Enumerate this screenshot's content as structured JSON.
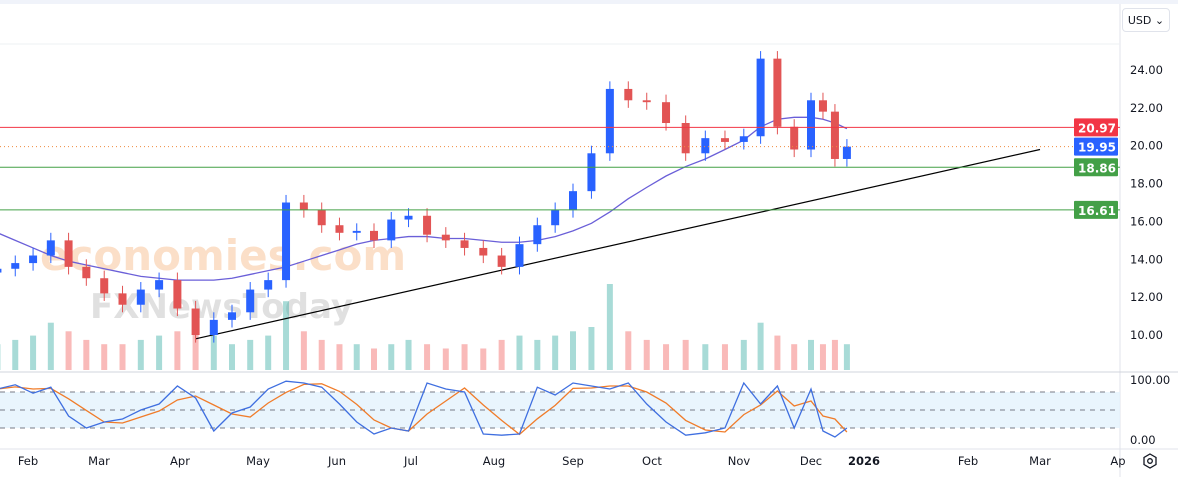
{
  "currency_selector": {
    "label": "USD",
    "icon": "chevron-down-icon"
  },
  "watermarks": [
    "economies.com",
    "FXNewsToday"
  ],
  "colors": {
    "up": "#2962ff",
    "down": "#e25454",
    "ma": "#6a5fd8",
    "stoch_k": "#3f6fe0",
    "stoch_d": "#f07c2a",
    "resistance": "#f23645",
    "support": "#43a047",
    "last_price": "#2962ff",
    "trendline": "#000000"
  },
  "chart_data": [
    {
      "type": "candlestick",
      "title": "",
      "ylim": [
        8.5,
        26
      ],
      "y_ticks": [
        "24.00",
        "22.00",
        "20.00",
        "18.00",
        "16.00",
        "14.00",
        "12.00",
        "10.00"
      ],
      "x_ticks": [
        "Feb",
        "Mar",
        "Apr",
        "May",
        "Jun",
        "Jul",
        "Aug",
        "Sep",
        "Oct",
        "Nov",
        "Dec",
        "2026",
        "Feb",
        "Mar",
        "Ap"
      ],
      "dates": [
        "2025-01-20",
        "2025-01-27",
        "2025-02-03",
        "2025-02-10",
        "2025-02-17",
        "2025-02-24",
        "2025-03-03",
        "2025-03-10",
        "2025-03-17",
        "2025-03-24",
        "2025-03-31",
        "2025-04-07",
        "2025-04-14",
        "2025-04-21",
        "2025-04-28",
        "2025-05-05",
        "2025-05-12",
        "2025-05-19",
        "2025-05-26",
        "2025-06-02",
        "2025-06-09",
        "2025-06-16",
        "2025-06-23",
        "2025-06-30",
        "2025-07-07",
        "2025-07-14",
        "2025-07-21",
        "2025-07-28",
        "2025-08-04",
        "2025-08-11",
        "2025-08-18",
        "2025-08-25",
        "2025-09-01",
        "2025-09-08",
        "2025-09-15",
        "2025-09-22",
        "2025-09-29",
        "2025-10-06",
        "2025-10-13",
        "2025-10-20",
        "2025-10-27",
        "2025-11-03",
        "2025-11-10",
        "2025-11-17",
        "2025-11-24",
        "2025-12-01",
        "2025-12-08",
        "2025-12-15",
        "2025-12-22"
      ],
      "close": [
        13.5,
        13.8,
        14.2,
        15.0,
        13.6,
        13.0,
        12.2,
        11.6,
        12.4,
        12.9,
        11.4,
        10.0,
        10.8,
        11.2,
        12.4,
        12.9,
        17.0,
        16.6,
        15.8,
        15.4,
        15.5,
        15.0,
        16.1,
        16.3,
        15.3,
        15.0,
        14.6,
        14.2,
        13.6,
        14.8,
        15.8,
        16.6,
        17.6,
        19.6,
        23.0,
        22.4,
        22.3,
        21.2,
        19.6,
        20.4,
        20.2,
        20.5,
        24.6,
        21.0,
        19.8,
        22.4,
        21.8,
        19.3,
        19.95
      ],
      "moving_average": [
        15.4,
        15.0,
        14.6,
        14.2,
        13.9,
        13.7,
        13.5,
        13.3,
        13.1,
        13.0,
        12.9,
        12.9,
        12.9,
        13.0,
        13.2,
        13.4,
        13.6,
        13.9,
        14.2,
        14.5,
        14.8,
        15.0,
        15.1,
        15.2,
        15.2,
        15.1,
        15.1,
        15.0,
        14.9,
        14.9,
        15.0,
        15.2,
        15.5,
        15.9,
        16.5,
        17.2,
        17.8,
        18.4,
        18.9,
        19.3,
        19.8,
        20.3,
        21.0,
        21.4,
        21.5,
        21.5,
        21.4,
        21.2,
        20.9
      ],
      "volume": [
        30,
        35,
        40,
        55,
        45,
        35,
        30,
        30,
        35,
        40,
        45,
        70,
        40,
        30,
        35,
        40,
        80,
        45,
        35,
        30,
        30,
        25,
        30,
        35,
        30,
        25,
        30,
        25,
        35,
        40,
        35,
        40,
        45,
        50,
        100,
        45,
        35,
        30,
        35,
        30,
        30,
        35,
        55,
        40,
        30,
        35,
        30,
        35,
        30
      ],
      "horizontal_levels": [
        {
          "label": "20.97",
          "value": 20.97,
          "kind": "resistance"
        },
        {
          "label": "19.95",
          "value": 19.95,
          "kind": "last_price"
        },
        {
          "label": "18.86",
          "value": 18.86,
          "kind": "support"
        },
        {
          "label": "16.61",
          "value": 16.61,
          "kind": "support"
        }
      ],
      "trendline": {
        "start": {
          "date": "2025-04-07",
          "value": 9.8
        },
        "end": {
          "date": "2026-03-01",
          "value": 19.8
        }
      }
    },
    {
      "type": "line",
      "ylim": [
        0,
        100
      ],
      "y_ticks": [
        "100.00",
        "0.00"
      ],
      "bands": [
        20,
        50,
        80
      ],
      "k": [
        85,
        92,
        78,
        88,
        40,
        20,
        30,
        35,
        50,
        60,
        90,
        70,
        15,
        45,
        55,
        85,
        98,
        95,
        88,
        60,
        30,
        10,
        20,
        15,
        95,
        85,
        80,
        10,
        8,
        10,
        88,
        75,
        95,
        90,
        85,
        95,
        60,
        30,
        8,
        12,
        20,
        95,
        60,
        90,
        20,
        85,
        15,
        5,
        20
      ]
    }
  ]
}
